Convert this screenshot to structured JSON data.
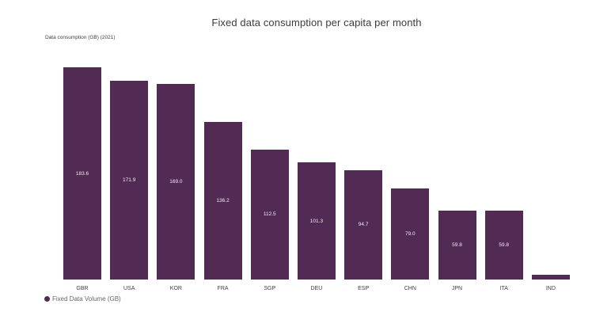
{
  "title": "Fixed data consumption per capita per month",
  "y_axis_label": "Data consumption (GB) (2021)",
  "legend": {
    "label": "Fixed Data Volume (GB)"
  },
  "colors": {
    "bar": "#522B54",
    "data_label": "#F2EBF2",
    "title_text": "#3B3B3B",
    "axis_text": "#3F3F3F",
    "legend_text": "#666666",
    "background": "#FFFFFF"
  },
  "chart_data": {
    "type": "bar",
    "title": "Fixed data consumption per capita per month",
    "series_name": "Fixed Data Volume (GB)",
    "categories": [
      "GBR",
      "USA",
      "KOR",
      "FRA",
      "SGP",
      "DEU",
      "ESP",
      "CHN",
      "JPN",
      "ITA",
      "IND"
    ],
    "values": [
      183.6,
      171.9,
      169.0,
      136.2,
      112.5,
      101.3,
      94.7,
      79.0,
      59.8,
      59.8,
      4.0
    ],
    "data_labels": [
      "183.6",
      "171.9",
      "169.0",
      "136.2",
      "112.5",
      "101.3",
      "94.7",
      "79.0",
      "59.8",
      "59.8",
      ""
    ],
    "xlabel": "",
    "ylabel": "Data consumption (GB) (2021)",
    "ylim": [
      0,
      183.6
    ],
    "grid": false,
    "legend_position": "bottom-left"
  }
}
